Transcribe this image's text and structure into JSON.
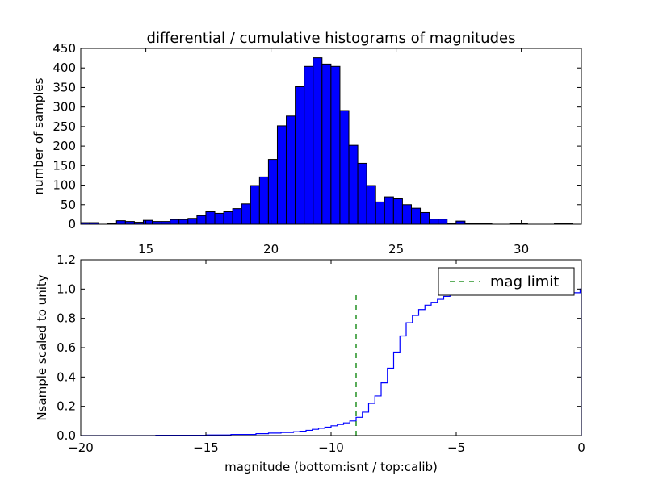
{
  "chart_data": [
    {
      "type": "bar",
      "title": "differential / cumulative histograms of magnitudes",
      "xlabel": "",
      "ylabel": "number of samples",
      "xlim": [
        12.4,
        32.4
      ],
      "ylim": [
        0,
        450
      ],
      "x_ticks": [
        15,
        20,
        25,
        30
      ],
      "y_ticks": [
        0,
        50,
        100,
        150,
        200,
        250,
        300,
        350,
        400,
        450
      ],
      "bin_width": 0.357,
      "bin_start": 12.4,
      "values": [
        4,
        4,
        0,
        2,
        9,
        7,
        5,
        10,
        7,
        7,
        12,
        12,
        15,
        22,
        32,
        28,
        32,
        40,
        52,
        99,
        121,
        166,
        252,
        277,
        352,
        404,
        426,
        410,
        404,
        291,
        202,
        156,
        99,
        57,
        70,
        65,
        50,
        41,
        30,
        13,
        13,
        2,
        8,
        2,
        2,
        2,
        0,
        0,
        2,
        2,
        0,
        0,
        0,
        2,
        2,
        0
      ],
      "color": "#0000ff",
      "edge_color": "#000000"
    },
    {
      "type": "line",
      "style": "step",
      "xlabel": "magnitude (bottom:isnt / top:calib)",
      "ylabel": "Nsample scaled to unity",
      "xlim": [
        -20,
        0
      ],
      "ylim": [
        0,
        1.2
      ],
      "x_ticks": [
        -20,
        -15,
        -10,
        -5,
        0
      ],
      "x_tick_labels": [
        "−20",
        "−15",
        "−10",
        "−5",
        "0"
      ],
      "y_ticks": [
        0,
        0.2,
        0.4,
        0.6,
        0.8,
        1.0,
        1.2
      ],
      "y_tick_labels": [
        "0.0",
        "0.2",
        "0.4",
        "0.6",
        "0.8",
        "1.0",
        "1.2"
      ],
      "series": [
        {
          "x": [
            -20,
            -17,
            -15,
            -14,
            -13,
            -12.5,
            -12,
            -11.5,
            -11.25,
            -11.0,
            -10.75,
            -10.5,
            -10.25,
            -10.0,
            -9.75,
            -9.5,
            -9.25,
            -9.0,
            -8.75,
            -8.5,
            -8.25,
            -8.0,
            -7.75,
            -7.5,
            -7.25,
            -7.0,
            -6.75,
            -6.5,
            -6.25,
            -6.0,
            -5.75,
            -5.5,
            -5.25,
            -5.0,
            -4.75,
            -4.5,
            -0.05,
            0
          ],
          "y": [
            0.0,
            0.002,
            0.004,
            0.008,
            0.013,
            0.017,
            0.021,
            0.026,
            0.03,
            0.036,
            0.043,
            0.05,
            0.058,
            0.067,
            0.076,
            0.087,
            0.1,
            0.125,
            0.16,
            0.22,
            0.27,
            0.36,
            0.46,
            0.57,
            0.68,
            0.77,
            0.82,
            0.86,
            0.89,
            0.91,
            0.93,
            0.95,
            0.96,
            0.97,
            0.975,
            0.975,
            1.0,
            0.0
          ],
          "color": "#0000ff"
        }
      ],
      "annotations": [
        {
          "type": "vline",
          "x": -9.0,
          "y_range": [
            0,
            0.96
          ],
          "style": "dashed",
          "color": "#008000",
          "legend": "mag limit"
        }
      ],
      "legend": {
        "placement": "top-right",
        "entries": [
          "mag limit"
        ]
      }
    }
  ]
}
